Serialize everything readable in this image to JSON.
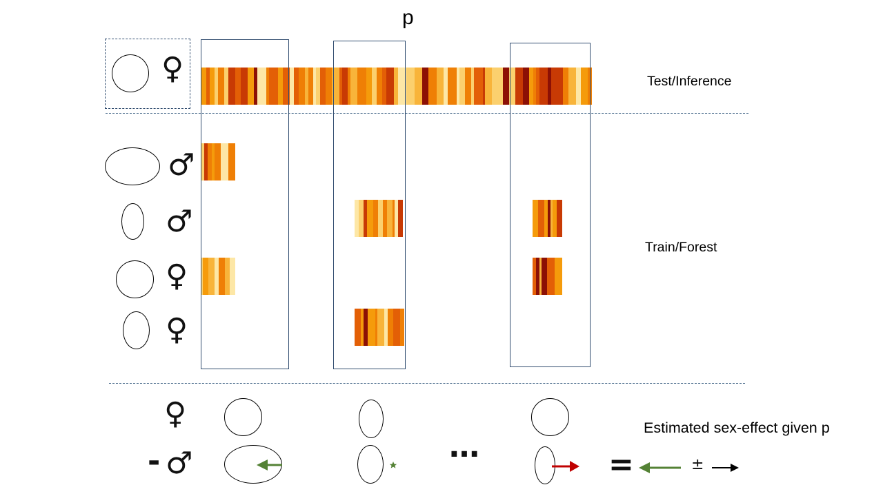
{
  "top_label": "p",
  "labels": {
    "test": "Test/Inference",
    "train": "Train/Forest",
    "estimate": "Estimated sex-effect given p"
  },
  "symbols": {
    "female": "♀",
    "male": "♂",
    "minus": "-",
    "ellipsis": "…",
    "equals": "=",
    "plus_minus": "±"
  },
  "palette": [
    "#fde7a6",
    "#fbd06e",
    "#f8b43a",
    "#f59b0b",
    "#ef7f05",
    "#e35f06",
    "#c83a04",
    "#8c1005"
  ],
  "colors": {
    "box_border": "#2f4b6e",
    "divider": "#4a6c8c",
    "green_arrow": "#548235",
    "red_arrow": "#c00000",
    "black_arrow": "#000000"
  }
}
